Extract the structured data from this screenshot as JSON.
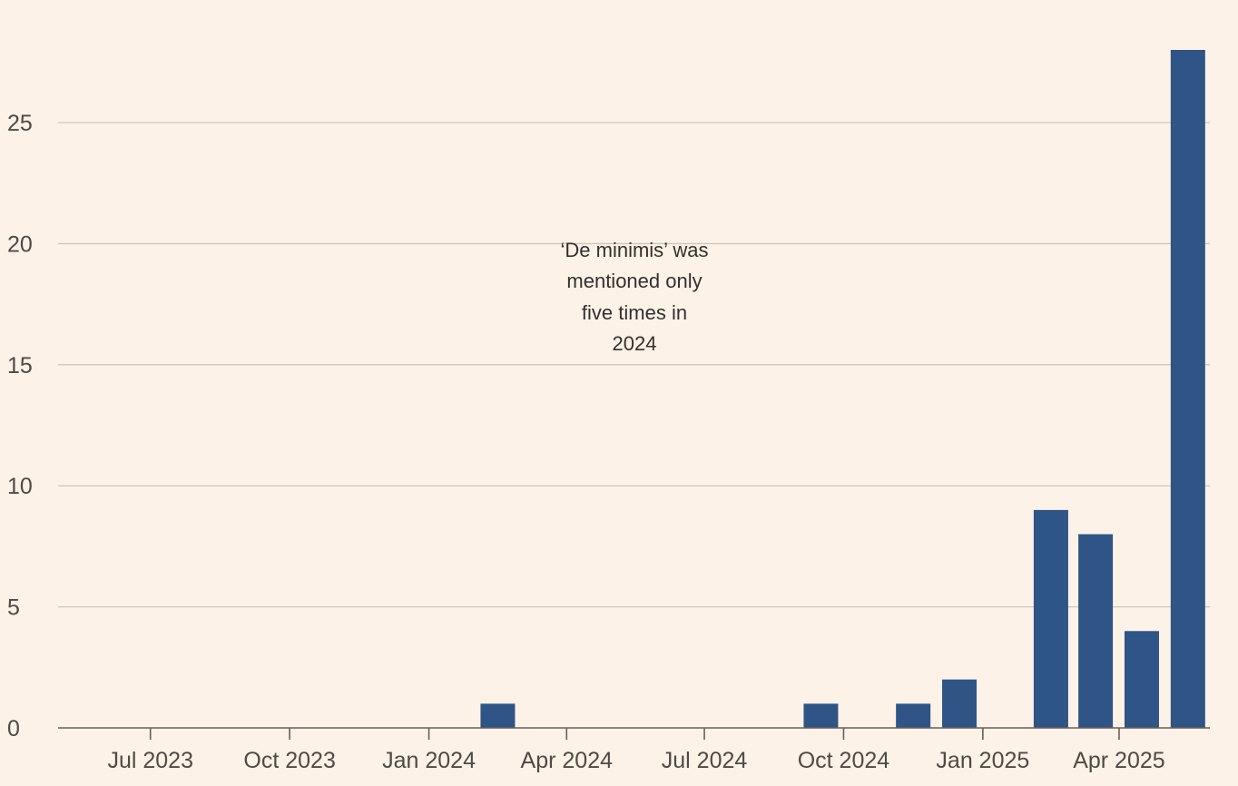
{
  "chart_data": {
    "type": "bar",
    "x_axis": {
      "type": "date",
      "tick_labels": [
        "Jul 2023",
        "Oct 2023",
        "Jan 2024",
        "Apr 2024",
        "Jul 2024",
        "Oct 2024",
        "Jan 2025",
        "Apr 2025"
      ],
      "tick_dates": [
        "2023-07-01",
        "2023-10-01",
        "2024-01-01",
        "2024-04-01",
        "2024-07-01",
        "2024-10-01",
        "2025-01-01",
        "2025-04-01"
      ],
      "range": [
        "2023-05-01",
        "2025-05-31"
      ]
    },
    "y_axis": {
      "ticks": [
        0,
        5,
        10,
        15,
        20,
        25
      ],
      "ylim": [
        0,
        28
      ]
    },
    "grid": true,
    "bars": [
      {
        "period": "2024-02",
        "value": 1
      },
      {
        "period": "2024-09",
        "value": 1
      },
      {
        "period": "2024-11",
        "value": 1
      },
      {
        "period": "2024-12",
        "value": 2
      },
      {
        "period": "2025-02",
        "value": 9
      },
      {
        "period": "2025-03",
        "value": 8
      },
      {
        "period": "2025-04",
        "value": 4
      },
      {
        "period": "2025-05",
        "value": 28
      }
    ],
    "annotation": {
      "lines": [
        "‘De minimis’ was",
        "mentioned only",
        "five times in",
        "2024"
      ]
    },
    "colors": {
      "bar": "#2f5486",
      "background": "#fdf2e7"
    }
  }
}
